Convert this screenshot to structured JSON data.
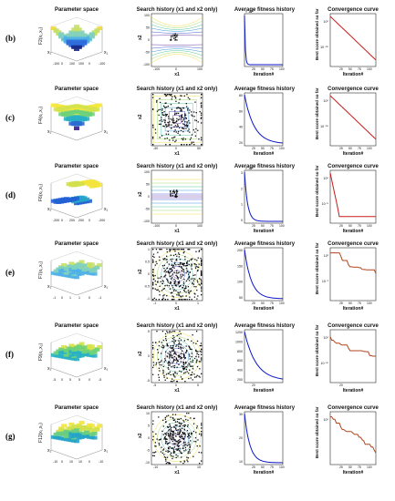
{
  "rows": [
    {
      "label": "(b)",
      "func": "F2(x₁,x₂)",
      "p1_xt": [
        "100",
        "0",
        "-100"
      ],
      "p1_yt": [
        "-100",
        "0",
        "100"
      ],
      "p2_yt": [
        "100",
        "50",
        "0",
        "-50",
        "-100"
      ],
      "p2_xt": [
        "-100",
        "0",
        "100"
      ],
      "p3_yt": [],
      "p3_mult": "× 10¹¹",
      "p4_yt": [
        "10⁰",
        "10⁻⁵⁰"
      ],
      "p4_xt": [
        "25",
        "50",
        "75",
        "100"
      ]
    },
    {
      "label": "(c)",
      "func": "F4(x₁,x₂)",
      "p1_xt": [
        "",
        "",
        ""
      ],
      "p1_yt": [
        "",
        "",
        ""
      ],
      "p2_yt": [],
      "p2_xt": [
        "-50",
        "0",
        "50"
      ],
      "p3_yt": [
        "80",
        "60",
        "40",
        "20"
      ],
      "p3_mult": "",
      "p4_yt": [
        "10⁰",
        "10⁻⁵⁰"
      ],
      "p4_xt": [
        "25",
        "50",
        "75",
        "100"
      ]
    },
    {
      "label": "(d)",
      "func": "F6(x₁,x₂)",
      "p1_xt": [
        "200",
        "0",
        "-200"
      ],
      "p1_yt": [
        "-200",
        "0",
        "200"
      ],
      "p2_yt": [
        "100",
        "50",
        "0",
        "-50",
        "-100"
      ],
      "p2_xt": [
        "-100",
        "0",
        "100"
      ],
      "p3_yt": [
        "3",
        "2",
        "1",
        "0"
      ],
      "p3_mult": "× 10⁴",
      "p4_yt": [
        "10⁰",
        "10⁻⁵"
      ],
      "p4_xt": [
        "25",
        "50",
        "75",
        "100"
      ]
    },
    {
      "label": "(e)",
      "func": "F7(x₁,x₂)",
      "p1_xt": [
        "1",
        "0",
        "-1"
      ],
      "p1_yt": [
        "-1",
        "0",
        "1"
      ],
      "p2_yt": [
        "1",
        "0.5",
        "0",
        "-0.5",
        "-1"
      ],
      "p2_xt": [
        "-1",
        "0",
        "1"
      ],
      "p3_yt": [
        "200",
        "150",
        "100",
        "50"
      ],
      "p3_mult": "",
      "p4_yt": [
        "10¹",
        "10⁻¹"
      ],
      "p4_xt": [
        "25",
        "50",
        "75",
        "100"
      ]
    },
    {
      "label": "(f)",
      "func": "F9(x₁,x₂)",
      "p1_xt": [
        "5",
        "0",
        "-5"
      ],
      "p1_yt": [
        "-5",
        "0",
        "5"
      ],
      "p2_yt": [
        "5",
        "0",
        "-5"
      ],
      "p2_xt": [
        "-5",
        "0",
        "5"
      ],
      "p3_yt": [
        "1200",
        "1000",
        "800",
        "600",
        "400",
        "200"
      ],
      "p3_mult": "",
      "p4_yt": [
        "10⁰",
        "10⁻¹⁰"
      ],
      "p4_xt": [
        "20"
      ]
    },
    {
      "label": "(g)",
      "func": "F12(x₁,x₂)",
      "p1_xt": [
        "10",
        "0",
        "-10"
      ],
      "p1_yt": [
        "-10",
        "0",
        "10"
      ],
      "p2_yt": [
        "10",
        "5",
        "0",
        "-5",
        "-10"
      ],
      "p2_xt": [
        "-10",
        "0",
        "10"
      ],
      "p3_yt": [
        "30",
        "20",
        "10"
      ],
      "p3_mult": "",
      "p4_yt": [
        "10⁰"
      ],
      "p4_xt": [
        "25",
        "50",
        "75",
        "100"
      ]
    }
  ],
  "titles": {
    "param": "Parameter space",
    "search": "Search history (x1 and x2 only)",
    "avg": "Average fitness history",
    "conv": "Convergence curve"
  },
  "axes": {
    "x1": "x1",
    "x2": "x2",
    "iteration": "Iteration#",
    "best": "Best score obtained so far",
    "px1": "x₁",
    "px2": "x₂"
  },
  "colors": {
    "avg_line": "#0b17c8",
    "conv_line": "#c81b1b",
    "conv_line_e": "#b0441a",
    "scatter": "#111111"
  }
}
